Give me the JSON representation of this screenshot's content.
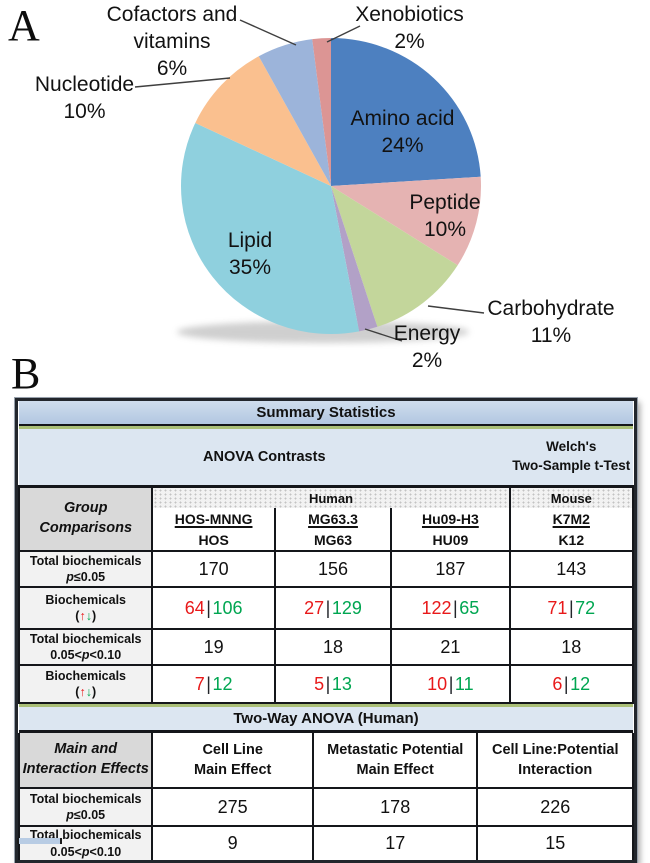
{
  "panel_a_label": "A",
  "panel_b_label": "B",
  "chart_data": {
    "type": "pie",
    "title": "",
    "legend_position": "none",
    "start_angle_deg": 0,
    "direction": "clockwise",
    "slices": [
      {
        "label": "Amino acid",
        "pct": "24%",
        "value": 24,
        "color": "#4d80c0"
      },
      {
        "label": "Peptide",
        "pct": "10%",
        "value": 10,
        "color": "#e5b3b2"
      },
      {
        "label": "Carbohydrate",
        "pct": "11%",
        "value": 11,
        "color": "#c3d69b"
      },
      {
        "label": "Energy",
        "pct": "2%",
        "value": 2,
        "color": "#b2a1c7"
      },
      {
        "label": "Lipid",
        "pct": "35%",
        "value": 35,
        "color": "#8fd0de"
      },
      {
        "label": "Nucleotide",
        "pct": "10%",
        "value": 10,
        "color": "#fac08f"
      },
      {
        "label": "Cofactors and vitamins",
        "label_lines": [
          "Cofactors and",
          "vitamins"
        ],
        "pct": "6%",
        "value": 6,
        "color": "#9cb4da"
      },
      {
        "label": "Xenobiotics",
        "pct": "2%",
        "value": 2,
        "color": "#dc9594"
      }
    ]
  },
  "summary_table": {
    "title": "Summary Statistics",
    "anova_header": "ANOVA Contrasts",
    "welch_header_lines": [
      "Welch's",
      "Two-Sample t-Test"
    ],
    "group_label_lines": [
      "Group",
      "Comparisons"
    ],
    "species_headers": [
      "Human",
      "Mouse"
    ],
    "contrast_columns": [
      {
        "top": "HOS-MNNG",
        "bottom": "HOS"
      },
      {
        "top": "MG63.3",
        "bottom": "MG63"
      },
      {
        "top": "Hu09-H3",
        "bottom": "HU09"
      },
      {
        "top": "K7M2",
        "bottom": "K12"
      }
    ],
    "pipe": "|",
    "row_labels": {
      "total_sig": {
        "line1": "Total biochemicals",
        "p": "p",
        "cond": "≤0.05"
      },
      "biochem": {
        "line1": "Biochemicals",
        "open": "(",
        "up": "↑",
        "down": "↓",
        "close": ")"
      },
      "total_trend": {
        "line1": "Total biochemicals",
        "pre": "0.05<",
        "p": "p",
        "post": "<0.10"
      }
    },
    "rows": {
      "total_sig_values": [
        "170",
        "156",
        "187",
        "143"
      ],
      "updown_sig": [
        {
          "up": "64",
          "down": "106"
        },
        {
          "up": "27",
          "down": "129"
        },
        {
          "up": "122",
          "down": "65"
        },
        {
          "up": "71",
          "down": "72"
        }
      ],
      "total_trend_values": [
        "19",
        "18",
        "21",
        "18"
      ],
      "updown_trend": [
        {
          "up": "7",
          "down": "12"
        },
        {
          "up": "5",
          "down": "13"
        },
        {
          "up": "10",
          "down": "11"
        },
        {
          "up": "6",
          "down": "12"
        }
      ]
    },
    "twoway_title": "Two-Way ANOVA (Human)",
    "main_effects_label_lines": [
      "Main and",
      "Interaction Effects"
    ],
    "effect_columns": [
      {
        "line1": "Cell Line",
        "line2": "Main Effect"
      },
      {
        "line1": "Metastatic Potential",
        "line2": "Main Effect"
      },
      {
        "line1": "Cell Line:Potential",
        "line2": "Interaction"
      }
    ],
    "twoway_rows": {
      "total_sig_values": [
        "275",
        "178",
        "226"
      ],
      "total_trend_values": [
        "9",
        "17",
        "15"
      ]
    },
    "colors": {
      "up_red": "#e8191a",
      "down_green": "#00a651",
      "header_blue": "#b8cce4",
      "light_blue": "#dce6f1",
      "label_gray": "#d9d9d9",
      "green_separator": "#aabf77"
    }
  }
}
